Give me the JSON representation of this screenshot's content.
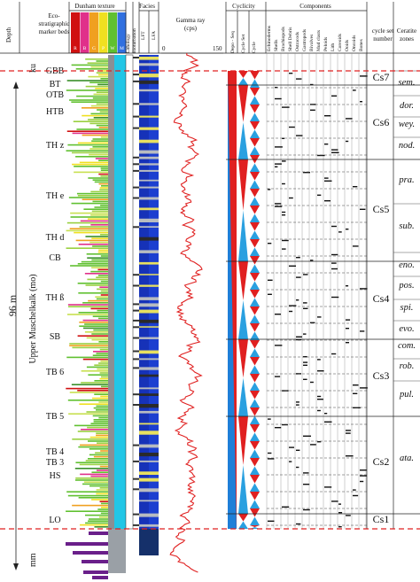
{
  "headers": {
    "depth": "Depth",
    "eco": "Eco-\nstratigraphic\nmarker beds",
    "dunham": "Dunham texture",
    "dunham_letters": [
      "R",
      "B",
      "G",
      "P",
      "W",
      "M"
    ],
    "lithology": "Lithology",
    "bioturbation": "Bioturbation",
    "facies": "Facies",
    "lft": "LFT",
    "lfa": "LFA",
    "gamma": "Gamma ray",
    "gamma_unit": "(cps)",
    "gamma_min": "0",
    "gamma_max": "150",
    "cyclicity": "Cyclicity",
    "depo_seq": "Depo - Seq",
    "cycle_set": "Cycle Set",
    "cycle": "Cycle",
    "components": "Components",
    "component_names": [
      "Echinoderms",
      "Shells",
      "Brachiopods",
      "Shell Debris",
      "Ostracods",
      "Gastropods",
      "Bivalves",
      "Mud clasts",
      "Peloids",
      "Lith",
      "Coreoids",
      "Ooids",
      "Oncoids",
      "Bones"
    ],
    "cycle_set_number": "cycle set\nnumber",
    "ceratite_zones": "Ceratite\nzones"
  },
  "left_labels": {
    "ku": "ku",
    "mm": "mm",
    "thickness": "96 m",
    "unit": "Upper Muschelkalk (mo)"
  },
  "marker_beds": [
    "GBB",
    "BT",
    "OTB",
    "HTB",
    "TH z",
    "TH e",
    "TH d",
    "CB",
    "TH ß",
    "SB",
    "TB 6",
    "TB 5",
    "TB 4",
    "TB 3",
    "HS",
    "LO"
  ],
  "cycle_sets": [
    "Cs7",
    "Cs6",
    "Cs5",
    "Cs4",
    "Cs3",
    "Cs2",
    "Cs1"
  ],
  "ceratite_zones": [
    "sem.",
    "dor.",
    "wey.",
    "nod.",
    "pra.",
    "sub.",
    "eno.",
    "pos.",
    "spi.",
    "evo.",
    "com.",
    "rob.",
    "pul.",
    "ata."
  ],
  "colors": {
    "boundary": "#e02020",
    "depo_blue": "#1e7fd8",
    "cycle_blue": "#2aa0e0",
    "cycle_red": "#e02020",
    "dunham_R": "#d01010",
    "dunham_B": "#e0308a",
    "dunham_G": "#f0a020",
    "dunham_P": "#f0e020",
    "dunham_W": "#60c030",
    "dunham_M": "#3070e0",
    "lithology": "#20c8e8",
    "lfa": "#1030c0"
  }
}
